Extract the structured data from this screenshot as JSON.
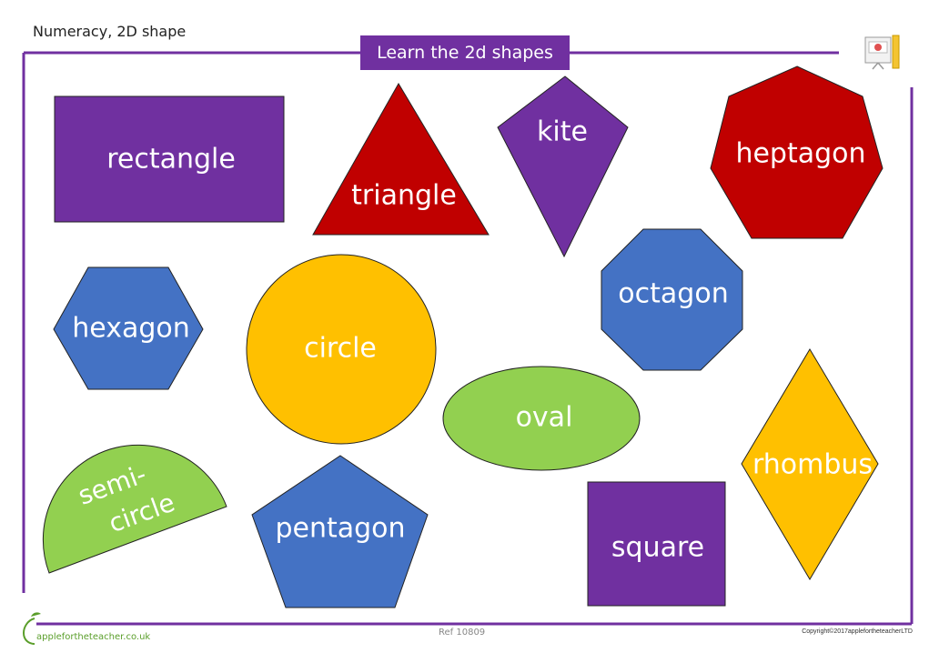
{
  "header": {
    "subject": "Numeracy, 2D shape"
  },
  "banner": {
    "title": "Learn the 2d shapes"
  },
  "shapes": {
    "rectangle": {
      "label": "rectangle",
      "color": "#7030a0"
    },
    "triangle": {
      "label": "triangle",
      "color": "#c00000"
    },
    "kite": {
      "label": "kite",
      "color": "#7030a0"
    },
    "heptagon": {
      "label": "heptagon",
      "color": "#c00000"
    },
    "hexagon": {
      "label": "hexagon",
      "color": "#4472c4"
    },
    "circle": {
      "label": "circle",
      "color": "#ffc000"
    },
    "octagon": {
      "label": "octagon",
      "color": "#4472c4"
    },
    "oval": {
      "label": "oval",
      "color": "#92d050"
    },
    "rhombus": {
      "label": "rhombus",
      "color": "#ffc000"
    },
    "semicircle": {
      "label_line1": "semi-",
      "label_line2": "circle",
      "color": "#92d050"
    },
    "pentagon": {
      "label": "pentagon",
      "color": "#4472c4"
    },
    "square": {
      "label": "square",
      "color": "#7030a0"
    }
  },
  "footer": {
    "brand": "applefortheteacher.co.uk",
    "ref": "Ref 10809",
    "copyright": "Copyright©2017applefortheteacherLTD"
  },
  "colors": {
    "frame": "#7030a0",
    "banner": "#7030a0"
  }
}
